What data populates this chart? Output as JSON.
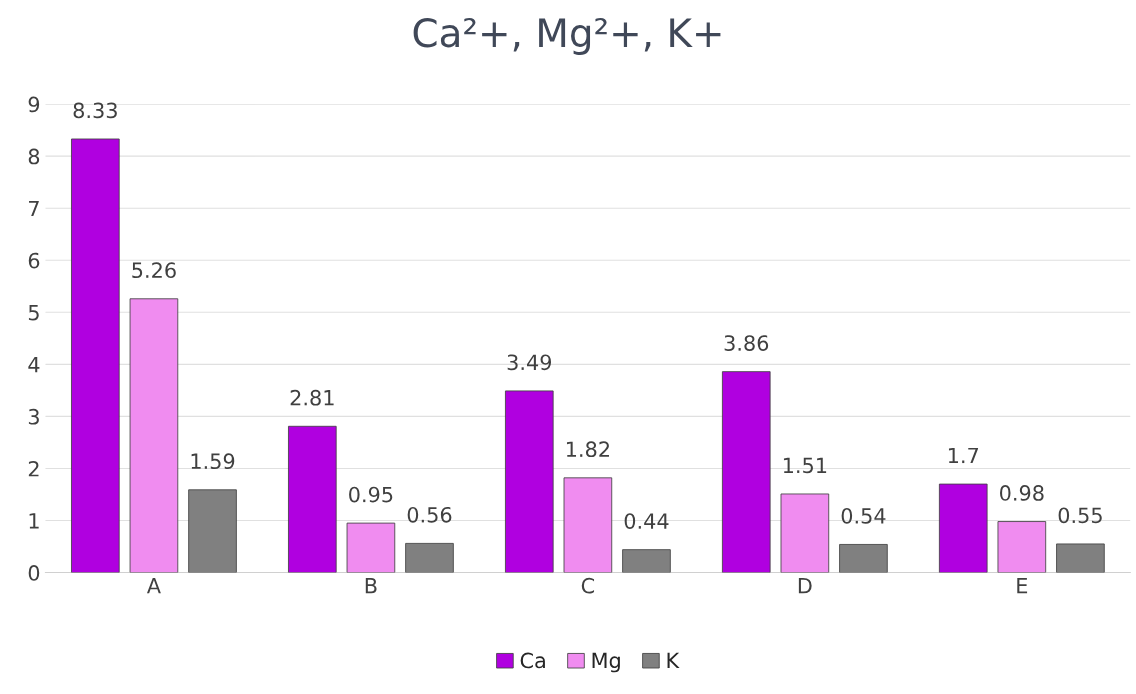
{
  "chart_data": {
    "type": "bar",
    "title": "Ca²+, Mg²+, K+",
    "categories": [
      "A",
      "B",
      "C",
      "D",
      "E"
    ],
    "series": [
      {
        "name": "Ca",
        "color": "#b000e0",
        "values": [
          8.33,
          2.81,
          3.49,
          3.86,
          1.7
        ]
      },
      {
        "name": "Mg",
        "color": "#f08cf0",
        "values": [
          5.26,
          0.95,
          1.82,
          1.51,
          0.98
        ]
      },
      {
        "name": "K",
        "color": "#808080",
        "values": [
          1.59,
          0.56,
          0.44,
          0.54,
          0.55
        ]
      }
    ],
    "ylim": [
      0,
      9
    ],
    "yticks": [
      0,
      1,
      2,
      3,
      4,
      5,
      6,
      7,
      8,
      9
    ],
    "grid": "y",
    "legend": "bottom",
    "data_labels": true
  }
}
